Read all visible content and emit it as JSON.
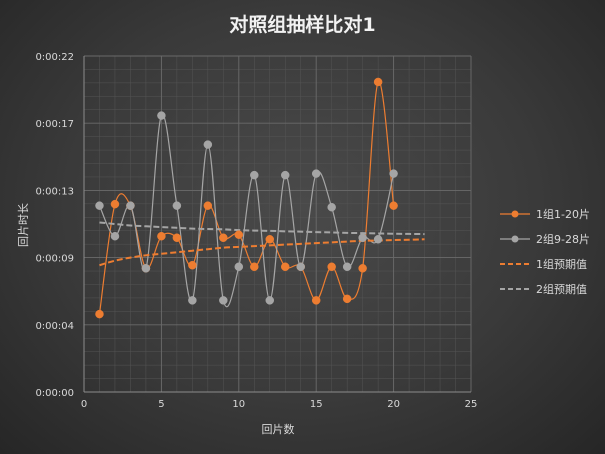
{
  "chart_data": {
    "type": "scatter",
    "title": "对照组抽样比对1",
    "xlabel": "回片数",
    "ylabel": "回片时长",
    "xlim": [
      0,
      25
    ],
    "x_ticks": [
      0,
      5,
      10,
      15,
      20,
      25
    ],
    "ylim_seconds": [
      0,
      22
    ],
    "y_ticks": [
      {
        "seconds": 0,
        "label": "0:00:00"
      },
      {
        "seconds": 4.4,
        "label": "0:00:04"
      },
      {
        "seconds": 8.8,
        "label": "0:00:09"
      },
      {
        "seconds": 13.2,
        "label": "0:00:13"
      },
      {
        "seconds": 17.6,
        "label": "0:00:17"
      },
      {
        "seconds": 22,
        "label": "0:00:22"
      }
    ],
    "grid": true,
    "legend_position": "right",
    "series": [
      {
        "name": "1组1-20片",
        "style": "smooth-line-markers",
        "color": "#ed7d31",
        "x": [
          1,
          2,
          3,
          4,
          5,
          6,
          7,
          8,
          9,
          10,
          11,
          12,
          13,
          14,
          15,
          16,
          17,
          18,
          19,
          20
        ],
        "y": [
          5.1,
          12.3,
          12.2,
          8.1,
          10.2,
          10.1,
          8.3,
          12.2,
          10.1,
          10.3,
          8.2,
          10.0,
          8.2,
          8.2,
          6.0,
          8.2,
          6.1,
          8.1,
          20.3,
          12.2
        ]
      },
      {
        "name": "2组9-28片",
        "style": "smooth-line-markers",
        "color": "#a5a5a5",
        "x": [
          1,
          2,
          3,
          4,
          5,
          6,
          7,
          8,
          9,
          10,
          11,
          12,
          13,
          14,
          15,
          16,
          17,
          18,
          19,
          20
        ],
        "y": [
          12.2,
          10.2,
          12.2,
          8.1,
          18.1,
          12.2,
          6.0,
          16.2,
          6.0,
          8.2,
          14.2,
          6.0,
          14.2,
          8.2,
          14.3,
          12.1,
          8.2,
          10.1,
          10.0,
          14.3
        ]
      },
      {
        "name": "1组预期值",
        "style": "dashed-line",
        "color": "#ed7d31",
        "x": [
          1,
          2,
          3,
          4,
          5,
          6,
          7,
          8,
          9,
          10,
          11,
          12,
          13,
          14,
          15,
          16,
          17,
          18,
          19,
          20,
          21,
          22
        ],
        "y": [
          8.3,
          8.6,
          8.8,
          8.95,
          9.05,
          9.15,
          9.25,
          9.35,
          9.45,
          9.5,
          9.55,
          9.6,
          9.65,
          9.7,
          9.75,
          9.8,
          9.85,
          9.9,
          9.92,
          9.95,
          9.97,
          10.0
        ]
      },
      {
        "name": "2组预期值",
        "style": "dashed-line",
        "color": "#a5a5a5",
        "x": [
          1,
          2,
          3,
          4,
          5,
          6,
          7,
          8,
          9,
          10,
          11,
          12,
          13,
          14,
          15,
          16,
          17,
          18,
          19,
          20,
          21,
          22
        ],
        "y": [
          11.1,
          11.0,
          10.9,
          10.85,
          10.8,
          10.75,
          10.7,
          10.67,
          10.65,
          10.6,
          10.57,
          10.55,
          10.52,
          10.5,
          10.47,
          10.45,
          10.42,
          10.4,
          10.38,
          10.36,
          10.35,
          10.34
        ]
      }
    ]
  }
}
